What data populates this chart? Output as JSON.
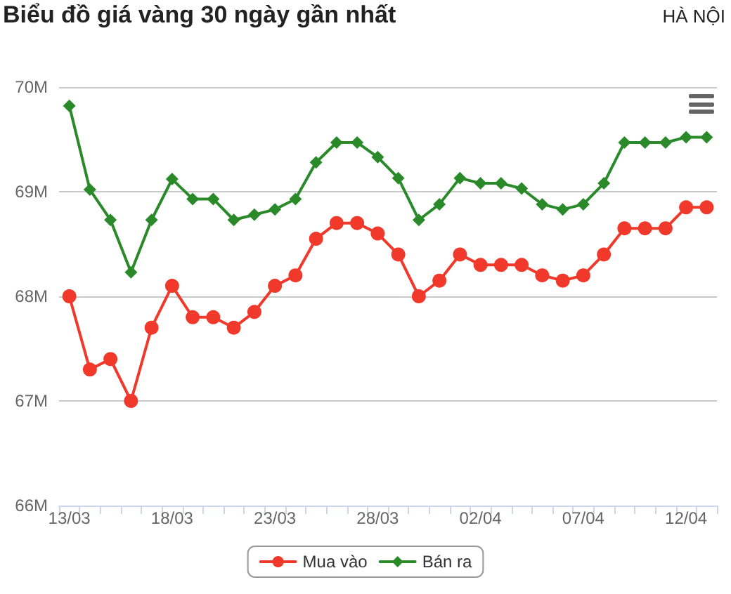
{
  "chart_data": {
    "type": "line",
    "title": "Biểu đồ giá vàng 30 ngày gần nhất",
    "subtitle": "HÀ NỘI",
    "categories": [
      "13/03",
      null,
      null,
      null,
      null,
      "18/03",
      null,
      null,
      null,
      null,
      "23/03",
      null,
      null,
      null,
      null,
      "28/03",
      null,
      null,
      null,
      null,
      "02/04",
      null,
      null,
      null,
      null,
      "07/04",
      null,
      null,
      null,
      null,
      "12/04",
      null
    ],
    "series": [
      {
        "name": "Mua vào",
        "color": "#f0392b",
        "marker": "circle",
        "values": [
          68.0,
          67.3,
          67.4,
          67.0,
          67.7,
          68.1,
          67.8,
          67.8,
          67.7,
          67.85,
          68.1,
          68.2,
          68.55,
          68.7,
          68.7,
          68.6,
          68.4,
          68.0,
          68.15,
          68.4,
          68.3,
          68.3,
          68.3,
          68.2,
          68.15,
          68.2,
          68.4,
          68.65,
          68.65,
          68.65,
          68.85,
          68.85
        ]
      },
      {
        "name": "Bán ra",
        "color": "#2a8a2a",
        "marker": "diamond",
        "values": [
          69.82,
          69.02,
          68.73,
          68.23,
          68.73,
          69.12,
          68.93,
          68.93,
          68.73,
          68.78,
          68.83,
          68.93,
          69.28,
          69.47,
          69.47,
          69.33,
          69.13,
          68.73,
          68.88,
          69.13,
          69.08,
          69.08,
          69.03,
          68.88,
          68.83,
          68.88,
          69.08,
          69.47,
          69.47,
          69.47,
          69.52,
          69.52
        ]
      }
    ],
    "ylim": [
      66,
      70
    ],
    "yticks": [
      {
        "value": 66,
        "label": "66M"
      },
      {
        "value": 67,
        "label": "67M"
      },
      {
        "value": 68,
        "label": "68M"
      },
      {
        "value": 69,
        "label": "69M"
      },
      {
        "value": 70,
        "label": "70M"
      }
    ],
    "grid": "y",
    "legend": "bottom",
    "line_style": "solid"
  }
}
